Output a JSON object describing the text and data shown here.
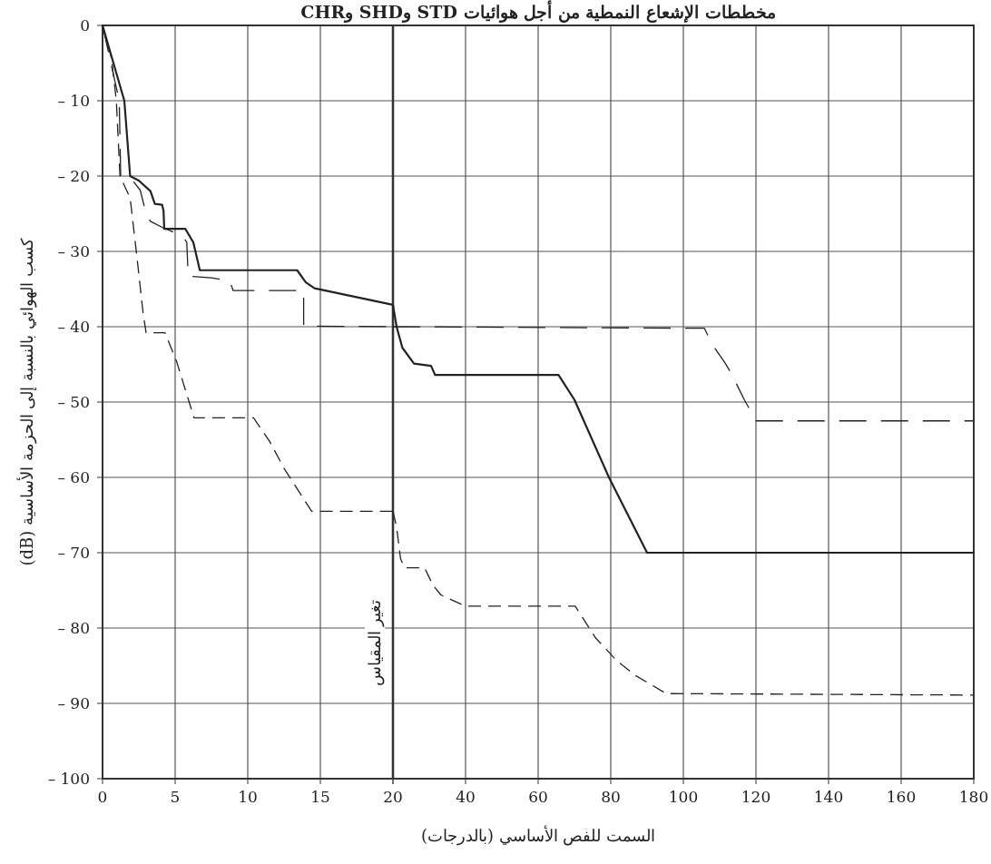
{
  "chart_data": [
    {
      "type": "line",
      "title": "مخططات الإشعاع النمطية من أجل هوائيات STD وSHD وCHR",
      "ylabel": "كسب الهوائي بالنسبة إلى الحزمة الأساسية (dB)",
      "xlim": [
        0,
        20
      ],
      "xticks": [
        {
          "value": 0,
          "label": "0"
        },
        {
          "value": 5,
          "label": "5"
        },
        {
          "value": 10,
          "label": "10"
        },
        {
          "value": 15,
          "label": "15"
        },
        {
          "value": 20,
          "label": "20"
        }
      ],
      "ylim": [
        -100,
        0
      ],
      "yticks": [
        {
          "value": 0,
          "label": "0"
        },
        {
          "value": -10,
          "label": "– 10"
        },
        {
          "value": -20,
          "label": "– 20"
        },
        {
          "value": -30,
          "label": "– 30"
        },
        {
          "value": -40,
          "label": "– 40"
        },
        {
          "value": -50,
          "label": "– 50"
        },
        {
          "value": -60,
          "label": "– 60"
        },
        {
          "value": -70,
          "label": "– 70"
        },
        {
          "value": -80,
          "label": "– 80"
        },
        {
          "value": -90,
          "label": "– 90"
        },
        {
          "value": -100,
          "label": "– 100"
        }
      ],
      "grid": true,
      "ref_lines": [
        {
          "axis": "x",
          "value": 20,
          "label": "تغير المقياس",
          "color": "#222222"
        }
      ],
      "series": [
        {
          "color": "#222222",
          "line_style": "solid",
          "x": [
            0,
            1.5,
            1.9,
            2.5,
            3.3,
            3.6,
            4.1,
            4.2,
            4.25,
            5.7,
            6.25,
            6.7,
            13.4,
            14,
            14.6,
            20
          ],
          "values": [
            0,
            -10,
            -20,
            -20.6,
            -22,
            -23.7,
            -23.8,
            -24.6,
            -27,
            -27,
            -28.8,
            -32.5,
            -32.5,
            -34.1,
            -34.9,
            -37.1
          ]
        },
        {
          "color": "#222222",
          "line_style": "dashed",
          "x": [
            0,
            1.15,
            1.25,
            2,
            2.6,
            3,
            3.3,
            4.2,
            5.5,
            5.8,
            5.9,
            7.5,
            8.75,
            9,
            13.85,
            13.85,
            20
          ],
          "values": [
            0,
            -10,
            -20,
            -20.4,
            -21.9,
            -25,
            -26,
            -26.9,
            -27.9,
            -28.8,
            -33.3,
            -33.5,
            -33.9,
            -35.2,
            -35.2,
            -39.9,
            -40
          ]
        },
        {
          "color": "#222222",
          "line_style": "dashed",
          "x": [
            0,
            0.6,
            0.95,
            1.2,
            1.9,
            2.4,
            2.8,
            3,
            4.3,
            5.1,
            6.3,
            10.4,
            11.5,
            12.5,
            14.4,
            20
          ],
          "values": [
            0,
            -4.2,
            -10,
            -20,
            -22.9,
            -31.3,
            -38.3,
            -40.8,
            -40.8,
            -44.6,
            -52.1,
            -52.1,
            -55.2,
            -58.8,
            -64.5,
            -64.5
          ]
        }
      ]
    },
    {
      "type": "line",
      "xlabel": "السمت للفص الأساسي (بالدرجات)",
      "tick_labels": "x",
      "xlim": [
        20,
        180
      ],
      "xticks": [
        {
          "value": 20,
          "label": null
        },
        {
          "value": 40,
          "label": "40"
        },
        {
          "value": 60,
          "label": "60"
        },
        {
          "value": 80,
          "label": "80"
        },
        {
          "value": 100,
          "label": "100"
        },
        {
          "value": 120,
          "label": "120"
        },
        {
          "value": 140,
          "label": "140"
        },
        {
          "value": 160,
          "label": "160"
        },
        {
          "value": 180,
          "label": "180"
        }
      ],
      "ylim": [
        -100,
        0
      ],
      "yticks": [
        0,
        -10,
        -20,
        -30,
        -40,
        -50,
        -60,
        -70,
        -80,
        -90,
        -100
      ],
      "grid": true,
      "series": [
        {
          "color": "#222222",
          "line_style": "solid",
          "x": [
            20,
            21,
            22.6,
            25.8,
            30.5,
            31.6,
            65.6,
            70,
            79.5,
            90,
            180
          ],
          "values": [
            -37.1,
            -40,
            -42.8,
            -44.9,
            -45.2,
            -46.4,
            -46.4,
            -49.7,
            -60,
            -70,
            -70
          ]
        },
        {
          "color": "#222222",
          "line_style": "dashed",
          "x": [
            20,
            105.8,
            107.9,
            111.6,
            113.2,
            116.8,
            120,
            180
          ],
          "values": [
            -40,
            -40.2,
            -42.3,
            -44.9,
            -46.2,
            -49.7,
            -52.5,
            -52.5
          ]
        },
        {
          "color": "#222222",
          "line_style": "dashed",
          "x": [
            20,
            21,
            22.1,
            23.2,
            28.7,
            31,
            33.2,
            40,
            70.2,
            75.8,
            81.6,
            86.8,
            95.3,
            180
          ],
          "values": [
            -64.5,
            -66.6,
            -70.8,
            -72,
            -72,
            -74.3,
            -75.6,
            -77.1,
            -77.1,
            -81.3,
            -84.3,
            -86.3,
            -88.7,
            -88.9
          ]
        }
      ]
    }
  ]
}
